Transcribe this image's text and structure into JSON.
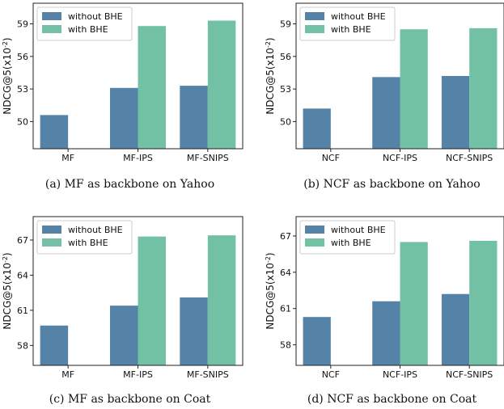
{
  "colors": {
    "without": "#5583a8",
    "with": "#72c1a5",
    "axis": "#222222"
  },
  "chart_data": [
    {
      "type": "bar",
      "caption": "(a)  MF as backbone on Yahoo",
      "ylabel": "NDCG@5(x10^-2)",
      "ylim": [
        47.5,
        60.9
      ],
      "yticks": [
        "50",
        "53",
        "56",
        "59"
      ],
      "categories": [
        "MF",
        "MF-IPS",
        "MF-SNIPS"
      ],
      "series": [
        {
          "name": "without BHE",
          "values": [
            50.6,
            53.1,
            53.3
          ]
        },
        {
          "name": "with BHE",
          "values": [
            null,
            58.8,
            59.3
          ]
        }
      ],
      "legend": "upper-left"
    },
    {
      "type": "bar",
      "caption": "(b)  NCF as backbone on Yahoo",
      "ylabel": "NDCG@5(x10^-2)",
      "ylim": [
        47.5,
        60.9
      ],
      "yticks": [
        "50",
        "53",
        "56",
        "59"
      ],
      "categories": [
        "NCF",
        "NCF-IPS",
        "NCF-SNIPS"
      ],
      "series": [
        {
          "name": "without BHE",
          "values": [
            51.2,
            54.1,
            54.2
          ]
        },
        {
          "name": "with BHE",
          "values": [
            null,
            58.5,
            58.6
          ]
        }
      ],
      "legend": "upper-left"
    },
    {
      "type": "bar",
      "caption": "(c)  MF as backbone on Coat",
      "ylabel": "NDCG@5(x10^-2)",
      "ylim": [
        56.3,
        69.0
      ],
      "yticks": [
        "58",
        "61",
        "64",
        "67"
      ],
      "categories": [
        "MF",
        "MF-IPS",
        "MF-SNIPS"
      ],
      "series": [
        {
          "name": "without BHE",
          "values": [
            59.7,
            61.4,
            62.1
          ]
        },
        {
          "name": "with BHE",
          "values": [
            null,
            67.3,
            67.4
          ]
        }
      ],
      "legend": "upper-left"
    },
    {
      "type": "bar",
      "caption": "(d)  NCF as backbone on Coat",
      "ylabel": "NDCG@5(x10^-2)",
      "ylim": [
        56.3,
        68.6
      ],
      "yticks": [
        "58",
        "61",
        "64",
        "67"
      ],
      "categories": [
        "NCF",
        "NCF-IPS",
        "NCF-SNIPS"
      ],
      "series": [
        {
          "name": "without BHE",
          "values": [
            60.3,
            61.6,
            62.2
          ]
        },
        {
          "name": "with BHE",
          "values": [
            null,
            66.5,
            66.6
          ]
        }
      ],
      "legend": "upper-left"
    }
  ]
}
